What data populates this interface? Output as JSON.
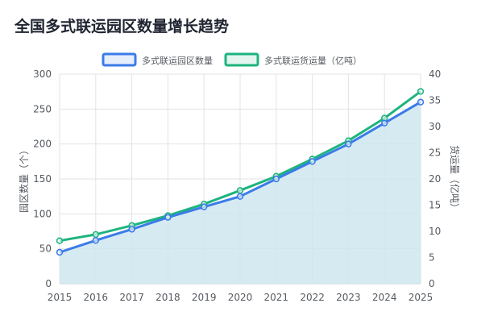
{
  "title": "全国多式联运园区数量增长趋势",
  "chart_data": {
    "type": "line",
    "title": "全国多式联运园区数量增长趋势",
    "x": [
      "2015",
      "2016",
      "2017",
      "2018",
      "2019",
      "2020",
      "2021",
      "2022",
      "2023",
      "2024",
      "2025"
    ],
    "series": [
      {
        "name": "多式联运园区数量",
        "axis": "left",
        "color": "#3b7be8",
        "fill": true,
        "fill_color": "#cfe6f0",
        "values": [
          45,
          62,
          78,
          95,
          110,
          125,
          150,
          175,
          200,
          230,
          260
        ]
      },
      {
        "name": "多式联运货运量（亿吨）",
        "axis": "right",
        "color": "#1db47e",
        "fill": false,
        "values": [
          8.2,
          9.4,
          11.1,
          13.0,
          15.2,
          17.8,
          20.5,
          23.8,
          27.3,
          31.6,
          36.7
        ]
      }
    ],
    "y_left": {
      "label": "园区数量（个）",
      "min": 0,
      "max": 300,
      "ticks": [
        "0",
        "50",
        "100",
        "150",
        "200",
        "250",
        "300"
      ]
    },
    "y_right": {
      "label": "货运量（亿吨）",
      "min": 0,
      "max": 40,
      "ticks": [
        "0",
        "5",
        "10",
        "15",
        "20",
        "25",
        "30",
        "35",
        "40"
      ]
    },
    "legend_position": "top-center",
    "grid": true
  }
}
